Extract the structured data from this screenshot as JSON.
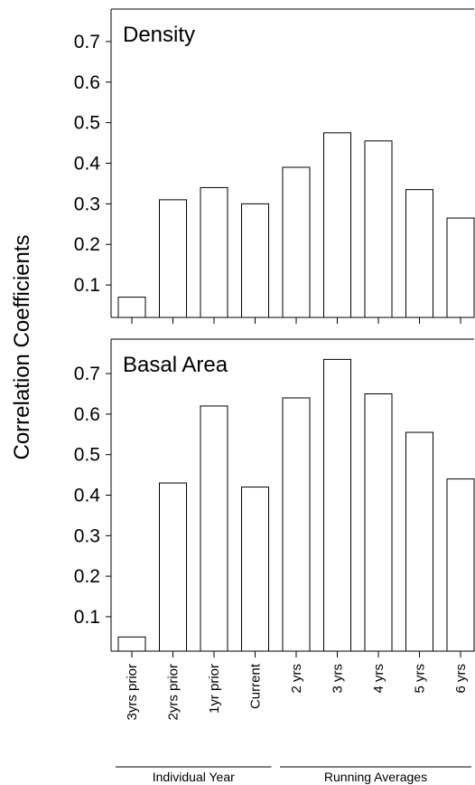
{
  "chart_data": {
    "type": "bar",
    "ylabel": "Correlation Coefficients",
    "categories": [
      "3yrs prior",
      "2yrs prior",
      "1yr prior",
      "Current",
      "2 yrs",
      "3 yrs",
      "4 yrs",
      "5 yrs",
      "6 yrs"
    ],
    "groups": [
      {
        "label": "Individual Year",
        "categories": [
          "3yrs prior",
          "2yrs prior",
          "1yr prior",
          "Current"
        ]
      },
      {
        "label": "Running Averages",
        "categories": [
          "2 yrs",
          "3 yrs",
          "4 yrs",
          "5 yrs",
          "6 yrs"
        ]
      }
    ],
    "panels": [
      {
        "title": "Density",
        "values": [
          0.07,
          0.31,
          0.34,
          0.3,
          0.39,
          0.475,
          0.455,
          0.335,
          0.265
        ],
        "ylim": [
          0.02,
          0.78
        ],
        "yticks": [
          "0.1",
          "0.2",
          "0.3",
          "0.4",
          "0.5",
          "0.6",
          "0.7"
        ]
      },
      {
        "title": "Basal Area",
        "values": [
          0.05,
          0.43,
          0.62,
          0.42,
          0.64,
          0.735,
          0.65,
          0.555,
          0.44
        ],
        "ylim": [
          0.015,
          0.785
        ],
        "yticks": [
          "0.1",
          "0.2",
          "0.3",
          "0.4",
          "0.5",
          "0.6",
          "0.7"
        ]
      }
    ]
  }
}
